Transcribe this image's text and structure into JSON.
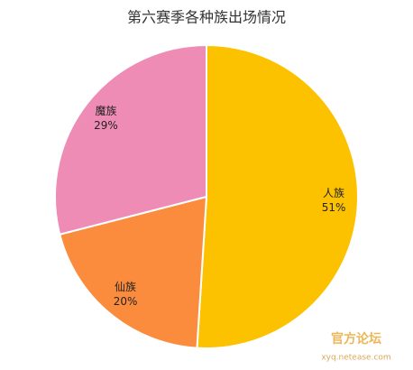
{
  "chart_data": {
    "type": "pie",
    "title": "第六赛季各种族出场情况",
    "categories": [
      "人族",
      "仙族",
      "魔族"
    ],
    "values": [
      51,
      20,
      29
    ],
    "value_labels": [
      "51%",
      "20%",
      "29%"
    ],
    "colors": [
      "#fcc200",
      "#fb8c3d",
      "#ee8cb5"
    ]
  },
  "watermark": {
    "title": "官方论坛",
    "url": "xyq.netease.com"
  }
}
